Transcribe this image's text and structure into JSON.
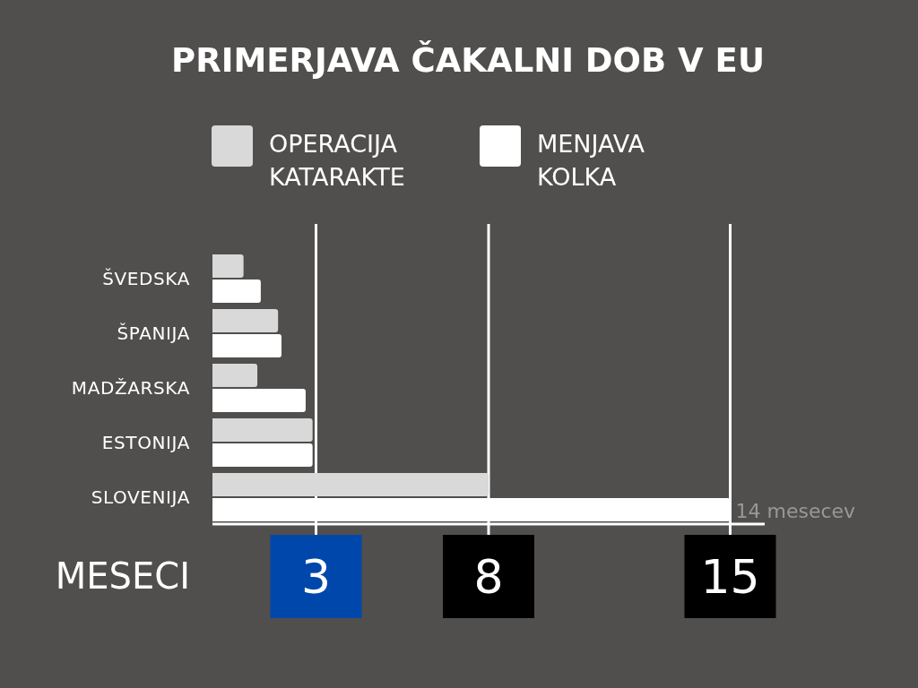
{
  "chart_data": {
    "type": "bar",
    "orientation": "horizontal",
    "title": "PRIMERJAVA ČAKALNI DOB V EU",
    "xlabel": "MESECI",
    "categories": [
      "ŠVEDSKA",
      "ŠPANIJA",
      "MADŽARSKA",
      "ESTONIJA",
      "SLOVENIJA"
    ],
    "series": [
      {
        "name": "OPERACIJA KATARAKTE",
        "color": "#d9d9d9",
        "values": [
          0.9,
          1.9,
          1.3,
          2.9,
          8
        ]
      },
      {
        "name": "MENJAVA KOLKA",
        "color": "#ffffff",
        "values": [
          1.4,
          2.0,
          2.7,
          2.9,
          15
        ]
      }
    ],
    "xlim": [
      0,
      16
    ],
    "xticks": [
      3,
      8,
      15
    ],
    "grid": "x",
    "legend": "top",
    "annotations": [
      {
        "text": "14 mesecev",
        "x": 15,
        "y": "SLOVENIJA"
      }
    ]
  }
}
